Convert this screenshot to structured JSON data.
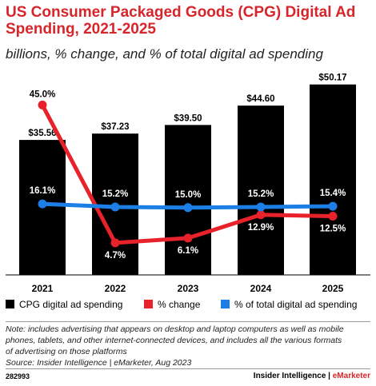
{
  "header": {
    "title": "US Consumer Packaged Goods (CPG) Digital Ad Spending, 2021-2025",
    "subtitle": "billions, % change, and % of total digital ad spending"
  },
  "chart_data": {
    "type": "bar",
    "categories": [
      "2021",
      "2022",
      "2023",
      "2024",
      "2025"
    ],
    "series": [
      {
        "name": "CPG digital ad spending",
        "type": "bar",
        "values": [
          35.56,
          37.23,
          39.5,
          44.6,
          50.17
        ],
        "labels": [
          "$35.56",
          "$37.23",
          "$39.50",
          "$44.60",
          "$50.17"
        ],
        "color": "#000000"
      },
      {
        "name": "% change",
        "type": "line",
        "values": [
          45.0,
          4.7,
          6.1,
          12.9,
          12.5
        ],
        "labels": [
          "45.0%",
          "4.7%",
          "6.1%",
          "12.9%",
          "12.5%"
        ],
        "color": "#e8222a"
      },
      {
        "name": "% of total digital ad spending",
        "type": "line",
        "values": [
          16.1,
          15.2,
          15.0,
          15.2,
          15.4
        ],
        "labels": [
          "16.1%",
          "15.2%",
          "15.0%",
          "15.2%",
          "15.4%"
        ],
        "color": "#1d7fe6"
      }
    ],
    "bar_ylim": [
      0,
      52
    ],
    "line_ylim": [
      0,
      50
    ],
    "grid": false,
    "legend_position": "bottom"
  },
  "note": {
    "line1": "Note: includes advertising that appears on desktop and laptop computers as well as mobile",
    "line2": "phones, tablets, and other internet-connected devices, and includes all the various formats",
    "line3": "of advertising on those platforms",
    "source": "Source: Insider Intelligence | eMarketer, Aug 2023"
  },
  "footer": {
    "chart_id": "282993",
    "brand_main": "Insider Intelligence | ",
    "brand_accent": "eMarketer"
  }
}
